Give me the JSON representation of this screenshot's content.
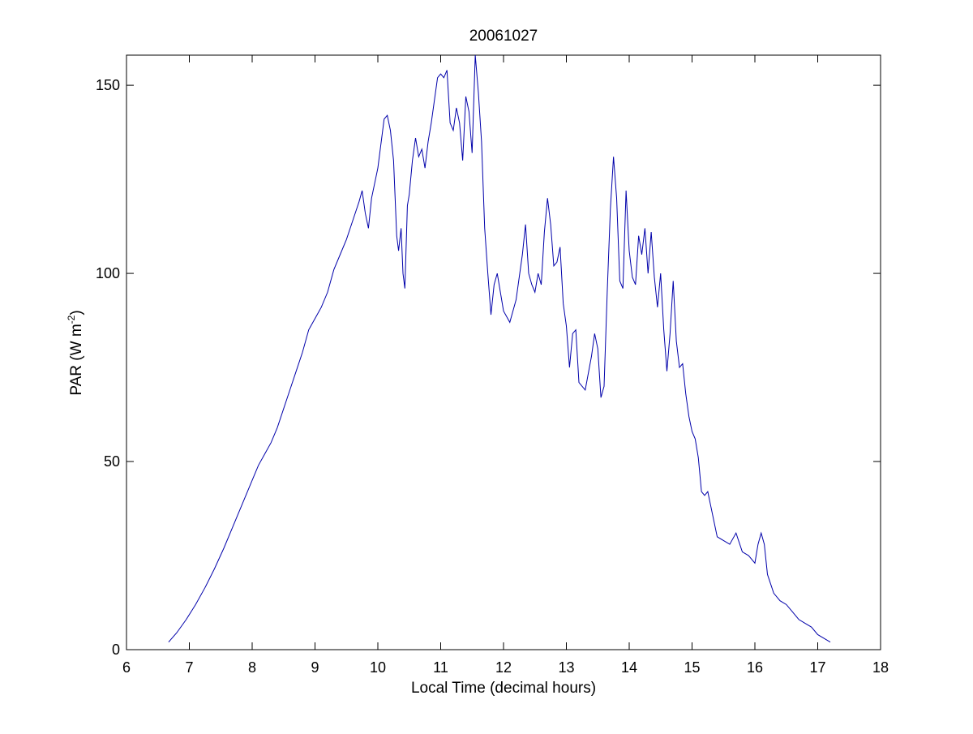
{
  "chart_data": {
    "type": "line",
    "title": "20061027",
    "xlabel": "Local Time (decimal hours)",
    "ylabel": {
      "main": "PAR (W m",
      "superscript": "-2",
      "close": ")"
    },
    "xlim": [
      6,
      18
    ],
    "ylim": [
      0,
      158
    ],
    "x_ticks": [
      "6",
      "7",
      "8",
      "9",
      "10",
      "11",
      "12",
      "13",
      "14",
      "15",
      "16",
      "17",
      "18"
    ],
    "y_ticks": [
      "0",
      "50",
      "100",
      "150"
    ],
    "grid": false,
    "legend": "none",
    "line_color": "#0000aa",
    "series": [
      {
        "x": [
          6.67,
          6.8,
          6.95,
          7.1,
          7.25,
          7.4,
          7.55,
          7.7,
          7.85,
          8.0,
          8.1,
          8.2,
          8.3,
          8.4,
          8.5,
          8.6,
          8.7,
          8.8,
          8.9,
          9.0,
          9.1,
          9.2,
          9.3,
          9.4,
          9.5,
          9.6,
          9.7,
          9.75,
          9.8,
          9.85,
          9.9,
          10.0,
          10.1,
          10.15,
          10.2,
          10.25,
          10.3,
          10.33,
          10.37,
          10.4,
          10.43,
          10.47,
          10.5,
          10.55,
          10.6,
          10.65,
          10.7,
          10.75,
          10.8,
          10.85,
          10.9,
          10.95,
          11.0,
          11.05,
          11.1,
          11.15,
          11.2,
          11.25,
          11.3,
          11.35,
          11.4,
          11.45,
          11.5,
          11.55,
          11.6,
          11.65,
          11.7,
          11.75,
          11.8,
          11.85,
          11.9,
          12.0,
          12.1,
          12.2,
          12.3,
          12.35,
          12.4,
          12.45,
          12.5,
          12.55,
          12.6,
          12.65,
          12.7,
          12.75,
          12.8,
          12.85,
          12.9,
          12.95,
          13.0,
          13.05,
          13.1,
          13.15,
          13.2,
          13.3,
          13.4,
          13.45,
          13.5,
          13.55,
          13.6,
          13.65,
          13.7,
          13.75,
          13.8,
          13.85,
          13.9,
          13.95,
          14.0,
          14.05,
          14.1,
          14.15,
          14.2,
          14.25,
          14.3,
          14.35,
          14.4,
          14.45,
          14.5,
          14.55,
          14.6,
          14.65,
          14.7,
          14.75,
          14.8,
          14.85,
          14.9,
          14.95,
          15.0,
          15.05,
          15.1,
          15.15,
          15.2,
          15.25,
          15.3,
          15.4,
          15.5,
          15.6,
          15.7,
          15.8,
          15.9,
          16.0,
          16.05,
          16.1,
          16.15,
          16.2,
          16.3,
          16.4,
          16.5,
          16.6,
          16.7,
          16.8,
          16.9,
          17.0,
          17.1,
          17.2
        ],
        "y": [
          2,
          4.5,
          8,
          12,
          16.5,
          21.5,
          27,
          33,
          39,
          45,
          49,
          52,
          55,
          59,
          64,
          69,
          74,
          79,
          85,
          88,
          91,
          95,
          101,
          105,
          109,
          114,
          119,
          122,
          116,
          112,
          120,
          128,
          141,
          142,
          138,
          130,
          110,
          106,
          112,
          100,
          96,
          118,
          121,
          130,
          136,
          131,
          133,
          128,
          135,
          140,
          146,
          152,
          153,
          152,
          154,
          140,
          138,
          144,
          140,
          130,
          147,
          143,
          132,
          158,
          148,
          135,
          112,
          100,
          89,
          97,
          100,
          90,
          87,
          93,
          105,
          113,
          100,
          97,
          95,
          100,
          97,
          111,
          120,
          113,
          102,
          103,
          107,
          92,
          86,
          75,
          84,
          85,
          71,
          69,
          78,
          84,
          80,
          67,
          70,
          95,
          117,
          131,
          120,
          98,
          96,
          122,
          106,
          99,
          97,
          110,
          105,
          112,
          100,
          111,
          99,
          91,
          100,
          85,
          74,
          84,
          98,
          82,
          75,
          76,
          68,
          62,
          58,
          56,
          51,
          42,
          41,
          42,
          38,
          30,
          29,
          28,
          31,
          26,
          25,
          23,
          28,
          31,
          28,
          20,
          15,
          13,
          12,
          10,
          8,
          7,
          6,
          4,
          3,
          2
        ]
      }
    ]
  }
}
